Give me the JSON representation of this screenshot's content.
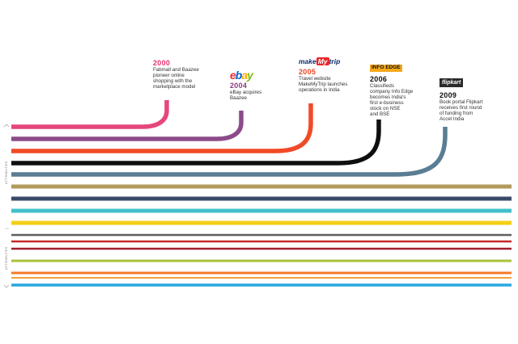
{
  "milestones": [
    {
      "year": "2000",
      "text": [
        "Fabmall and Baazee",
        "pioneer online",
        "shopping with the",
        "marketplace model"
      ],
      "year_color": "#e8336b"
    },
    {
      "year": "2004",
      "logo": "ebay",
      "text": [
        "eBay acquires",
        "Baazee"
      ],
      "year_color": "#8b3a7d"
    },
    {
      "year": "2005",
      "logo": "makemytrip",
      "text": [
        "Travel website",
        "MakeMyTrip launches",
        "operations in India"
      ],
      "year_color": "#f04423"
    },
    {
      "year": "2006",
      "logo": "INFO EDGE",
      "text": [
        "Classifieds",
        "company Info Edge",
        "becomes India's",
        "first e-business",
        "stock on NSE",
        "and BSE"
      ],
      "year_color": "#111111"
    },
    {
      "year": "2009",
      "logo": "flipkart",
      "text": [
        "Book portal Flipkart",
        "receives first round",
        "of funding from",
        "Accel India"
      ],
      "year_color": "#111111"
    }
  ],
  "logos": {
    "ebay": {
      "letters": [
        "e",
        "b",
        "a",
        "y"
      ],
      "colors": [
        "#e53238",
        "#0064d2",
        "#f5af02",
        "#86b817"
      ]
    },
    "makemytrip": {
      "pre": "make",
      "mid": "My",
      "post": "trip",
      "color": "#0a2a6b",
      "mid_color": "#e8262a"
    },
    "infoedge": {
      "text": "INFO EDGE",
      "bg": "#f5a81c"
    },
    "flipkart": {
      "text": "flipkart",
      "bg": "#2a2a2a"
    }
  },
  "side_labels": [
    "ATTRIBUTES",
    "ATTRIBUTES"
  ],
  "line_colors": [
    "#e6477a",
    "#8c4b8a",
    "#f14a26",
    "#0f0f0f",
    "#5a7d94",
    "#b29a5c",
    "#3a4a6a",
    "#42c1cc",
    "#f3cf16",
    "#5f5f5f",
    "#c62828",
    "#a01e2f",
    "#a8c23b",
    "#f37a2a",
    "#efa23a",
    "#2aa7df"
  ]
}
